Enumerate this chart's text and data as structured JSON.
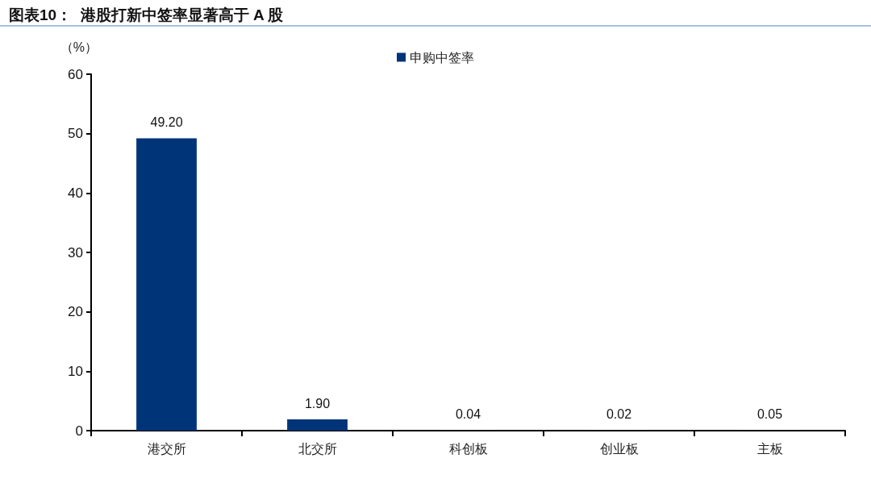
{
  "chart_data": {
    "type": "bar",
    "title": "图表10：  港股打新中签率显著高于 A 股",
    "ylabel": "（%）",
    "categories": [
      "港交所",
      "北交所",
      "科创板",
      "创业板",
      "主板"
    ],
    "series": [
      {
        "name": "申购中签率",
        "color": "#003478",
        "values": [
          49.2,
          1.9,
          0.04,
          0.02,
          0.05
        ],
        "value_labels": [
          "49.20",
          "1.90",
          "0.04",
          "0.02",
          "0.05"
        ]
      }
    ],
    "ylim": [
      0,
      60
    ],
    "yticks": [
      0,
      10,
      20,
      30,
      40,
      50,
      60
    ],
    "grid": false,
    "legend": "top"
  }
}
